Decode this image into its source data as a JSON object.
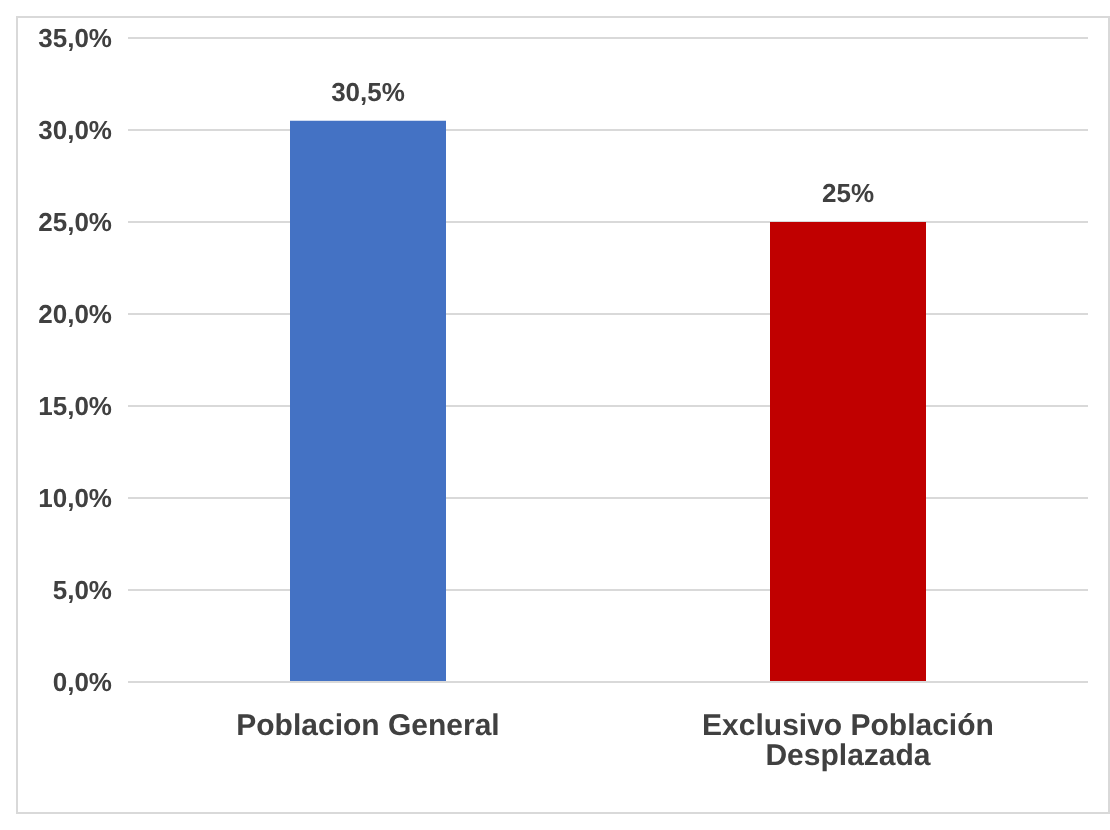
{
  "chart_data": {
    "type": "bar",
    "categories": [
      "Poblacion General",
      "Exclusivo Población Desplazada"
    ],
    "values": [
      30.5,
      25
    ],
    "colors": [
      "#4472c4",
      "#c00000"
    ],
    "value_labels": [
      "30,5%",
      "25%"
    ],
    "ylim": [
      0,
      35
    ],
    "yticks": [
      {
        "value": 0,
        "label": "0,0%"
      },
      {
        "value": 5,
        "label": "5,0%"
      },
      {
        "value": 10,
        "label": "10,0%"
      },
      {
        "value": 15,
        "label": "15,0%"
      },
      {
        "value": 20,
        "label": "20,0%"
      },
      {
        "value": 25,
        "label": "25,0%"
      },
      {
        "value": 30,
        "label": "30,0%"
      },
      {
        "value": 35,
        "label": "35,0%"
      }
    ],
    "grid": "y"
  }
}
